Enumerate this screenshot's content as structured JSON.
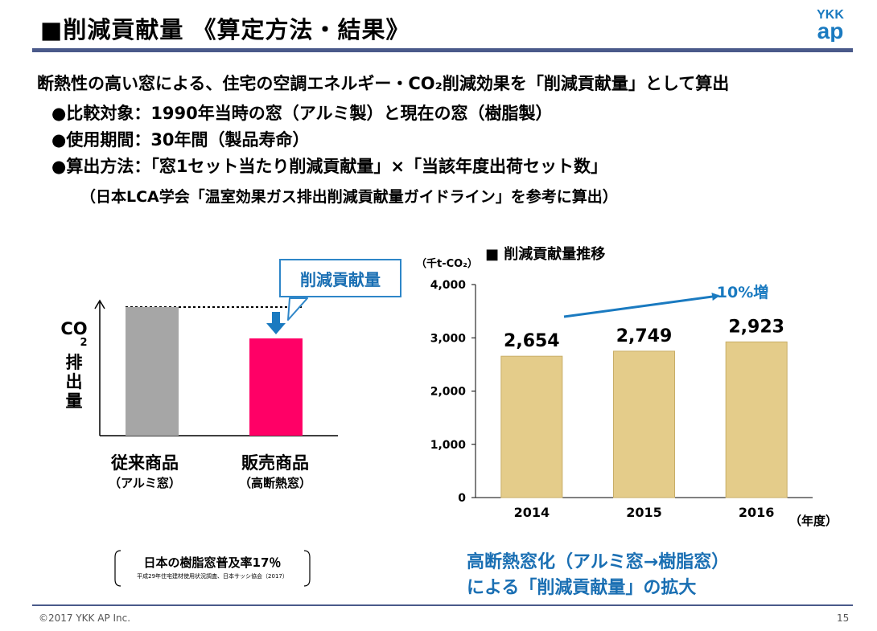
{
  "header": {
    "title": "■削減貢献量 《算定方法・結果》",
    "logo_top": "YKK",
    "logo_bottom": "ap"
  },
  "intro": "断熱性の高い窓による、住宅の空調エネルギー・CO₂削減効果を「削減貢献量」として算出",
  "bullets": [
    "●比較対象：1990年当時の窓（アルミ製）と現在の窓（樹脂製）",
    "●使用期間：30年間（製品寿命）",
    "●算出方法：「窓1セット当たり削減貢献量」×「当該年度出荷セット数」"
  ],
  "bullet_note": "（日本LCA学会「温室効果ガス排出削減貢献量ガイドライン」を参考に算出）",
  "concept": {
    "callout": "削減貢献量",
    "ylabel_top": "CO",
    "ylabel_sub": "2",
    "ylabel_rest": [
      "排",
      "出",
      "量"
    ],
    "categories": [
      {
        "label": "従来商品",
        "sub": "（アルミ窓）",
        "color": "#a6a6a6"
      },
      {
        "label": "販売商品",
        "sub": "（高断熱窓）",
        "color": "#ff0066"
      }
    ]
  },
  "chart_title": "■ 削減貢献量推移",
  "chart_data": {
    "type": "bar",
    "categories": [
      "2014",
      "2015",
      "2016"
    ],
    "values": [
      2654,
      2749,
      2923
    ],
    "value_labels": [
      "2,654",
      "2,749",
      "2,923"
    ],
    "ylim": [
      0,
      4000
    ],
    "yticks": [
      0,
      1000,
      2000,
      3000,
      4000
    ],
    "ytick_labels": [
      "0",
      "1,000",
      "2,000",
      "3,000",
      "4,000"
    ],
    "unit_label": "（千t-CO₂）",
    "xlabel": "（年度）",
    "annotation": "10%増",
    "bar_color": "#e4cc8a",
    "arrow_color": "#1a7ac0",
    "grid": false
  },
  "note": {
    "main": "日本の樹脂窓普及率17％",
    "source": "平成29年住宅建材使用状況調査、日本サッシ協会（2017）"
  },
  "conclusion": [
    "高断熱窓化（アルミ窓→樹脂窓）",
    "による「削減貢献量」の拡大"
  ],
  "footer": {
    "copyright": "©2017 YKK AP Inc.",
    "page": "15"
  }
}
